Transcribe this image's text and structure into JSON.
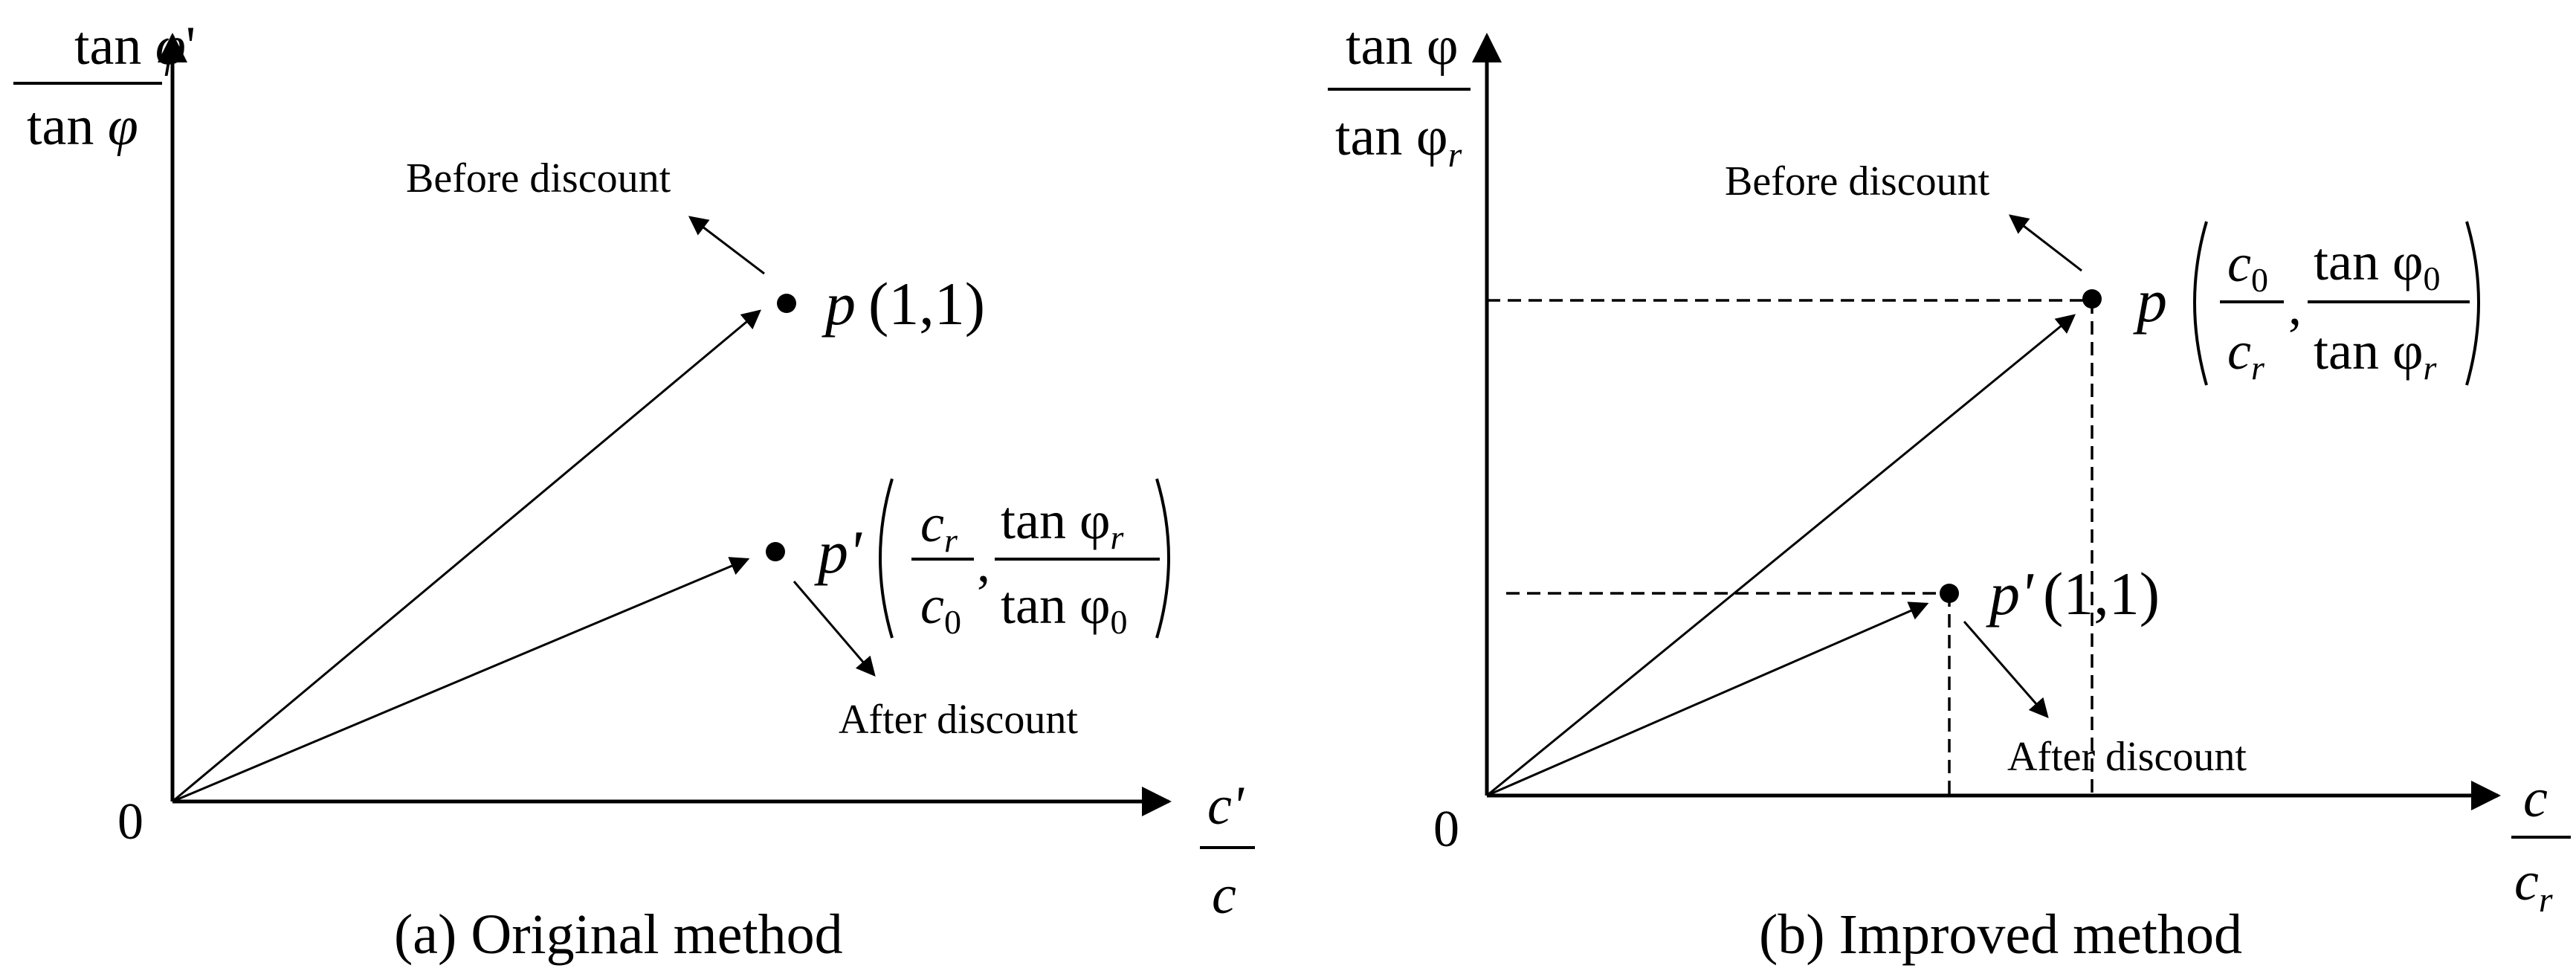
{
  "panel_a": {
    "caption": "(a) Original method",
    "origin": "0",
    "y_axis": {
      "numerator": "tan φ'",
      "denominator": "tan φ"
    },
    "x_axis": {
      "numerator": "c'",
      "denominator": "c"
    },
    "before_label": "Before discount",
    "after_label": "After  discount",
    "point_p": {
      "name": "p",
      "coords": "(1,1)"
    },
    "point_pprime": {
      "name": "p'",
      "x_num": "c",
      "x_num_sub": "r",
      "x_den": "c",
      "x_den_sub": "0",
      "y_num": "tan φ",
      "y_num_sub": "r",
      "y_den": "tan φ",
      "y_den_sub": "0"
    }
  },
  "panel_b": {
    "caption": "(b) Improved method",
    "origin": "0",
    "y_axis": {
      "numerator": "tan φ",
      "denominator": "tan φ",
      "denominator_sub": "r"
    },
    "x_axis": {
      "numerator": "c",
      "denominator": "c",
      "denominator_sub": "r"
    },
    "before_label": "Before discount",
    "after_label": "After  discount",
    "point_p": {
      "name": "p",
      "x_num": "c",
      "x_num_sub": "0",
      "x_den": "c",
      "x_den_sub": "r",
      "y_num": "tan φ",
      "y_num_sub": "0",
      "y_den": "tan φ",
      "y_den_sub": "r"
    },
    "point_pprime": {
      "name": "p'",
      "coords": "(1,1)"
    }
  }
}
